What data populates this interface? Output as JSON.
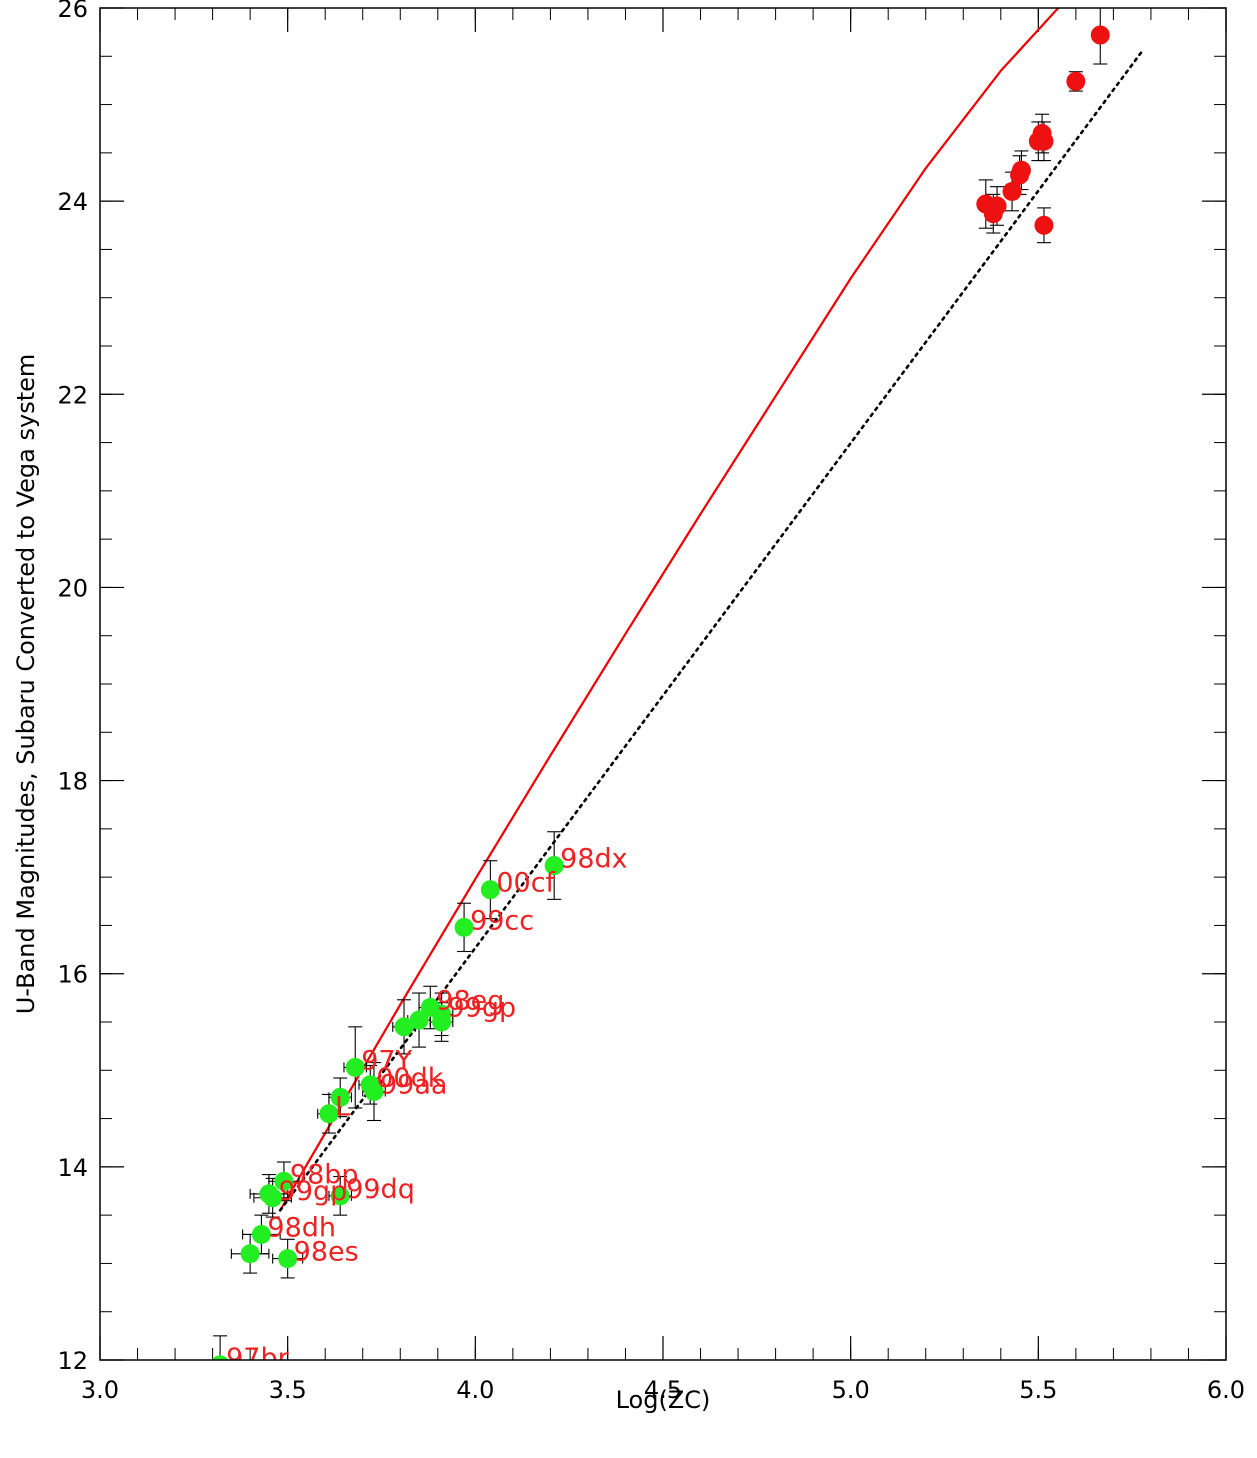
{
  "chart_data": {
    "type": "scatter",
    "title": "",
    "xlabel": "Log(ZC)",
    "ylabel": "U-Band Magnitudes, Subaru Converted to Vega system",
    "xlim": [
      3.0,
      6.0
    ],
    "ylim": [
      12,
      26
    ],
    "xticks": [
      3.0,
      3.5,
      4.0,
      4.5,
      5.0,
      5.5,
      6.0
    ],
    "xtick_labels": [
      "3.0",
      "3.5",
      "4.0",
      "4.5",
      "5.0",
      "5.5",
      "6.0"
    ],
    "yticks": [
      12,
      14,
      16,
      18,
      20,
      22,
      24,
      26
    ],
    "ytick_labels": [
      "12",
      "14",
      "16",
      "18",
      "20",
      "22",
      "24",
      "26"
    ],
    "grid": false,
    "colors": {
      "low_z_points": "#22ee22",
      "high_z_points": "#ee1111",
      "fit_curve": "#ee0000",
      "linear_line": "#000000",
      "labels": "#ee2222"
    },
    "series": [
      {
        "marker": "circle",
        "color": "#22ee22",
        "points": [
          {
            "x": 3.32,
            "y": 11.95,
            "label": "97br",
            "xerr": 0.0,
            "yerr": 0.3
          },
          {
            "x": 3.4,
            "y": 13.1,
            "label": "",
            "xerr": 0.05,
            "yerr": 0.2
          },
          {
            "x": 3.43,
            "y": 13.3,
            "label": "98dh",
            "xerr": 0.05,
            "yerr": 0.2
          },
          {
            "x": 3.45,
            "y": 13.72,
            "label": "",
            "xerr": 0.05,
            "yerr": 0.2
          },
          {
            "x": 3.46,
            "y": 13.68,
            "label": "99gp",
            "xerr": 0.05,
            "yerr": 0.2
          },
          {
            "x": 3.49,
            "y": 13.85,
            "label": "98bp",
            "xerr": 0.04,
            "yerr": 0.2
          },
          {
            "x": 3.5,
            "y": 13.05,
            "label": "98es",
            "xerr": 0.04,
            "yerr": 0.2
          },
          {
            "x": 3.64,
            "y": 13.7,
            "label": "99dq",
            "xerr": 0.03,
            "yerr": 0.2
          },
          {
            "x": 3.61,
            "y": 14.55,
            "label": "L",
            "xerr": 0.03,
            "yerr": 0.2
          },
          {
            "x": 3.64,
            "y": 14.72,
            "label": "",
            "xerr": 0.03,
            "yerr": 0.2
          },
          {
            "x": 3.68,
            "y": 15.03,
            "label": "97Y",
            "xerr": 0.03,
            "yerr": 0.42
          },
          {
            "x": 3.72,
            "y": 14.85,
            "label": "00dk",
            "xerr": 0.03,
            "yerr": 0.2
          },
          {
            "x": 3.73,
            "y": 14.78,
            "label": "99aa",
            "xerr": 0.03,
            "yerr": 0.3
          },
          {
            "x": 3.81,
            "y": 15.45,
            "label": "",
            "xerr": 0.03,
            "yerr": 0.28
          },
          {
            "x": 3.85,
            "y": 15.52,
            "label": "",
            "xerr": 0.03,
            "yerr": 0.28
          },
          {
            "x": 3.88,
            "y": 15.65,
            "label": "98eg",
            "xerr": 0.03,
            "yerr": 0.22
          },
          {
            "x": 3.91,
            "y": 15.58,
            "label": "99gp",
            "xerr": 0.03,
            "yerr": 0.22
          },
          {
            "x": 3.91,
            "y": 15.5,
            "label": "",
            "xerr": 0.03,
            "yerr": 0.2
          },
          {
            "x": 3.97,
            "y": 16.48,
            "label": "99cc",
            "xerr": 0.02,
            "yerr": 0.25
          },
          {
            "x": 4.04,
            "y": 16.87,
            "label": "00cf",
            "xerr": 0.02,
            "yerr": 0.3
          },
          {
            "x": 4.21,
            "y": 17.12,
            "label": "98dx",
            "xerr": 0.02,
            "yerr": 0.35
          }
        ]
      },
      {
        "marker": "circle",
        "color": "#ee1111",
        "points": [
          {
            "x": 5.36,
            "y": 23.97,
            "label": "",
            "xerr": 0.02,
            "yerr": 0.25
          },
          {
            "x": 5.38,
            "y": 23.87,
            "label": "",
            "xerr": 0.02,
            "yerr": 0.2
          },
          {
            "x": 5.39,
            "y": 23.95,
            "label": "",
            "xerr": 0.02,
            "yerr": 0.2
          },
          {
            "x": 5.43,
            "y": 24.1,
            "label": "",
            "xerr": 0.02,
            "yerr": 0.2
          },
          {
            "x": 5.45,
            "y": 24.27,
            "label": "",
            "xerr": 0.02,
            "yerr": 0.2
          },
          {
            "x": 5.455,
            "y": 24.32,
            "label": "",
            "xerr": 0.02,
            "yerr": 0.2
          },
          {
            "x": 5.5,
            "y": 24.62,
            "label": "",
            "xerr": 0.02,
            "yerr": 0.2
          },
          {
            "x": 5.51,
            "y": 24.7,
            "label": "",
            "xerr": 0.02,
            "yerr": 0.2
          },
          {
            "x": 5.515,
            "y": 24.62,
            "label": "",
            "xerr": 0.02,
            "yerr": 0.2
          },
          {
            "x": 5.515,
            "y": 23.75,
            "label": "",
            "xerr": 0.02,
            "yerr": 0.18
          },
          {
            "x": 5.6,
            "y": 25.24,
            "label": "",
            "xerr": 0.02,
            "yerr": 0.1
          },
          {
            "x": 5.665,
            "y": 25.72,
            "label": "",
            "xerr": 0.02,
            "yerr": 0.3
          }
        ]
      }
    ],
    "lines": [
      {
        "style": "solid",
        "color": "#ee0000",
        "x": [
          3.48,
          3.6,
          3.8,
          4.0,
          4.2,
          4.4,
          4.6,
          4.8,
          5.0,
          5.2,
          5.4,
          5.6,
          5.73
        ],
        "y": [
          13.55,
          14.35,
          15.68,
          16.98,
          18.26,
          19.52,
          20.76,
          21.98,
          23.2,
          24.34,
          25.35,
          26.2,
          26.7
        ]
      },
      {
        "style": "dotted",
        "color": "#000000",
        "x": [
          3.48,
          5.78
        ],
        "y": [
          13.55,
          25.57
        ]
      }
    ]
  }
}
